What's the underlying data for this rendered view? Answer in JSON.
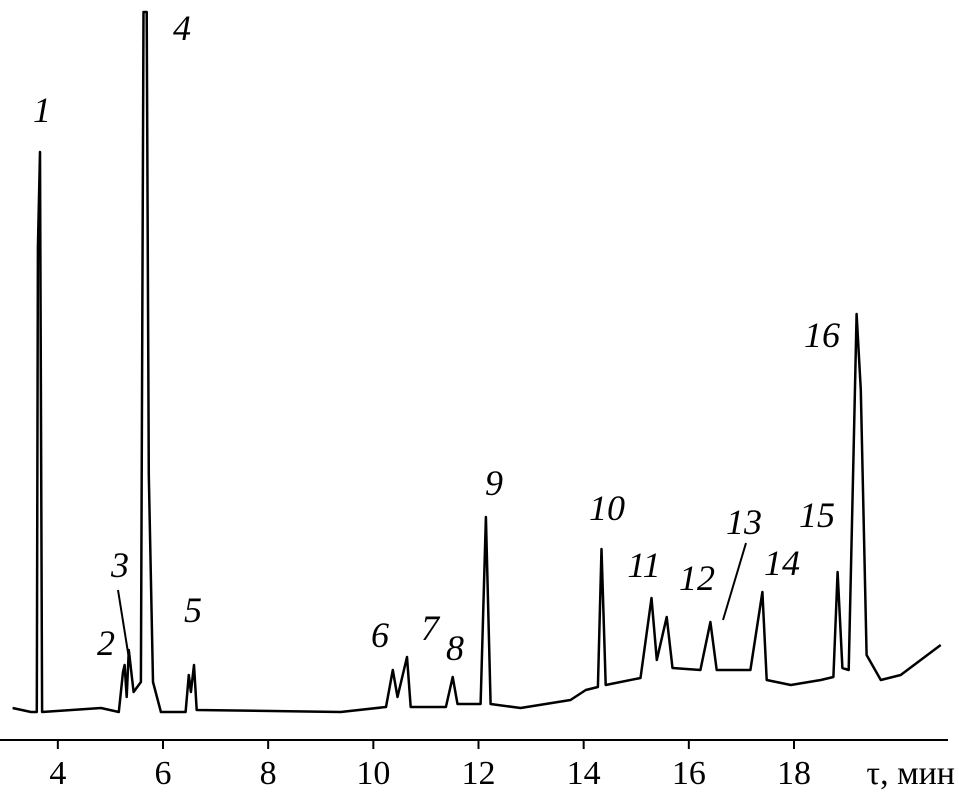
{
  "chart_data": {
    "type": "line",
    "x_label": "τ, мин",
    "xlim": [
      2.9,
      21.1
    ],
    "xticks": [
      4,
      6,
      8,
      10,
      12,
      14,
      16,
      18
    ],
    "ylim": [
      0,
      700
    ],
    "color": "#000000",
    "annotations": [
      "1",
      "2",
      "3",
      "4",
      "5",
      "6",
      "7",
      "8",
      "9",
      "10",
      "11",
      "12",
      "13",
      "14",
      "15",
      "16"
    ],
    "x": [
      3.14,
      3.49,
      3.6,
      3.62,
      3.66,
      3.7,
      4.82,
      5.16,
      5.24,
      5.27,
      5.31,
      5.35,
      5.44,
      5.58,
      5.63,
      5.69,
      5.73,
      5.81,
      5.96,
      6.43,
      6.49,
      6.53,
      6.59,
      6.64,
      9.38,
      10.24,
      10.37,
      10.46,
      10.64,
      10.71,
      11.38,
      11.51,
      11.6,
      12.04,
      12.14,
      12.23,
      12.8,
      13.75,
      14.04,
      14.27,
      14.34,
      14.42,
      15.08,
      15.29,
      15.39,
      15.58,
      15.69,
      16.22,
      16.41,
      16.53,
      17.17,
      17.4,
      17.48,
      17.94,
      18.51,
      18.75,
      18.83,
      18.92,
      19.04,
      19.13,
      19.19,
      19.27,
      19.38,
      19.65,
      20.03,
      20.79
    ],
    "values": [
      4,
      0,
      0,
      465,
      560,
      0,
      4,
      0,
      40,
      47,
      15,
      62,
      20,
      30,
      700,
      700,
      237,
      30,
      0,
      0,
      37,
      20,
      47,
      2,
      0,
      5,
      42,
      15,
      55,
      5,
      5,
      35,
      8,
      8,
      195,
      8,
      4,
      12,
      22,
      25,
      163,
      27,
      34,
      114,
      52,
      95,
      44,
      42,
      90,
      42,
      42,
      120,
      32,
      27,
      32,
      35,
      140,
      44,
      42,
      252,
      398,
      322,
      57,
      32,
      37,
      67
    ]
  }
}
